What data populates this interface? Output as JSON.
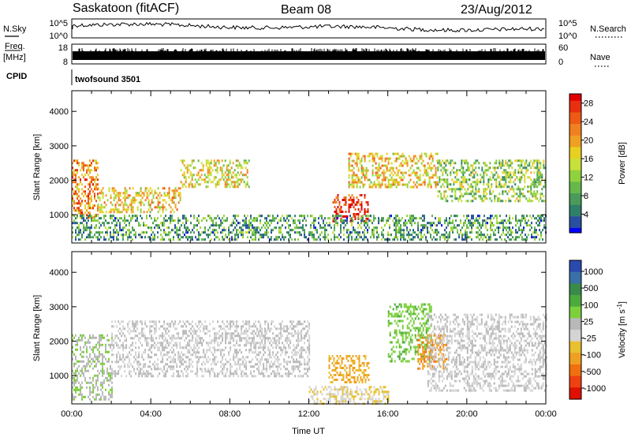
{
  "header": {
    "station": "Saskatoon (fitACF)",
    "beam": "Beam 08",
    "date": "23/Aug/2012"
  },
  "strip_labels": {
    "nsky": "N.Sky",
    "nsearch": "N.Search",
    "freq": "Freq.",
    "freq_unit": "[MHz]",
    "nave": "Nave",
    "cpid": "CPID",
    "cpid_value": "twofsound 3501"
  },
  "strip_ticks": {
    "noise_left": [
      "10^5",
      "10^0"
    ],
    "noise_right": [
      "10^5",
      "10^0"
    ],
    "freq_left": [
      "18",
      "8"
    ],
    "nave_right": [
      "60",
      "0"
    ]
  },
  "colors": {
    "power_scale": [
      "#0000ff",
      "#2a4ea0",
      "#2f7f6a",
      "#4a9a5a",
      "#66b84a",
      "#8fd23c",
      "#c8e03c",
      "#e8d020",
      "#f0a020",
      "#f08020",
      "#ee5a14",
      "#e83010",
      "#e00000"
    ],
    "velocity_scale": [
      "#2a4ab0",
      "#3a70a8",
      "#3a8a4a",
      "#4caa3c",
      "#7cd03c",
      "#b8b8b8",
      "#d4d4d4",
      "#e8c030",
      "#f0a020",
      "#f07010",
      "#ee4010",
      "#e01000"
    ]
  },
  "chart_data": [
    {
      "type": "heatmap",
      "title": "",
      "xlabel": "",
      "ylabel": "Slant Range [km]",
      "x_range": [
        "00:00",
        "00:00"
      ],
      "ylim": [
        180,
        4600
      ],
      "y_ticks": [
        "1000",
        "2000",
        "3000",
        "4000"
      ],
      "colorbar": {
        "label": "Power [dB]",
        "ticks": [
          "4",
          "8",
          "12",
          "16",
          "20",
          "24",
          "28"
        ],
        "range": [
          0,
          30
        ]
      },
      "scatter_bands": [
        {
          "t_start": 0.0,
          "t_end": 1.3,
          "range_start": 900,
          "range_end": 2600,
          "typical_power_db": 22
        },
        {
          "t_start": 1.3,
          "t_end": 5.5,
          "range_start": 1100,
          "range_end": 1800,
          "typical_power_db": 18
        },
        {
          "t_start": 5.5,
          "t_end": 9.0,
          "range_start": 1800,
          "range_end": 2600,
          "typical_power_db": 16
        },
        {
          "t_start": 13.2,
          "t_end": 15.0,
          "range_start": 800,
          "range_end": 1600,
          "typical_power_db": 28
        },
        {
          "t_start": 14.0,
          "t_end": 18.5,
          "range_start": 1800,
          "range_end": 2800,
          "typical_power_db": 18
        },
        {
          "t_start": 18.5,
          "t_end": 24.0,
          "range_start": 1400,
          "range_end": 2600,
          "typical_power_db": 12
        },
        {
          "t_start": 0.0,
          "t_end": 24.0,
          "range_start": 300,
          "range_end": 1000,
          "typical_power_db": 8
        }
      ]
    },
    {
      "type": "heatmap",
      "title": "",
      "xlabel": "Time UT",
      "ylabel": "Slant Range [km]",
      "x_ticks": [
        "00:00",
        "04:00",
        "08:00",
        "12:00",
        "16:00",
        "20:00",
        "00:00"
      ],
      "ylim": [
        180,
        4600
      ],
      "y_ticks": [
        "1000",
        "2000",
        "3000",
        "4000"
      ],
      "colorbar": {
        "label": "Velocity [m s^-1]",
        "ticks": [
          "1000",
          "500",
          "100",
          "25",
          "-25",
          "-100",
          "-500",
          "-1000"
        ],
        "range": [
          -1000,
          1000
        ]
      },
      "scatter_bands": [
        {
          "t_start": 0.0,
          "t_end": 2.0,
          "range_start": 300,
          "range_end": 2200,
          "typical_velocity_ms": 150
        },
        {
          "t_start": 2.0,
          "t_end": 12.0,
          "range_start": 1000,
          "range_end": 2600,
          "typical_velocity_ms": 0
        },
        {
          "t_start": 12.0,
          "t_end": 16.0,
          "range_start": 200,
          "range_end": 700,
          "typical_velocity_ms": -150
        },
        {
          "t_start": 13.0,
          "t_end": 15.0,
          "range_start": 800,
          "range_end": 1600,
          "typical_velocity_ms": -400
        },
        {
          "t_start": 16.0,
          "t_end": 18.2,
          "range_start": 1400,
          "range_end": 3100,
          "typical_velocity_ms": 300
        },
        {
          "t_start": 17.5,
          "t_end": 19.0,
          "range_start": 1200,
          "range_end": 2200,
          "typical_velocity_ms": -500
        },
        {
          "t_start": 18.0,
          "t_end": 24.0,
          "range_start": 600,
          "range_end": 2800,
          "typical_velocity_ms": 0
        }
      ]
    }
  ]
}
